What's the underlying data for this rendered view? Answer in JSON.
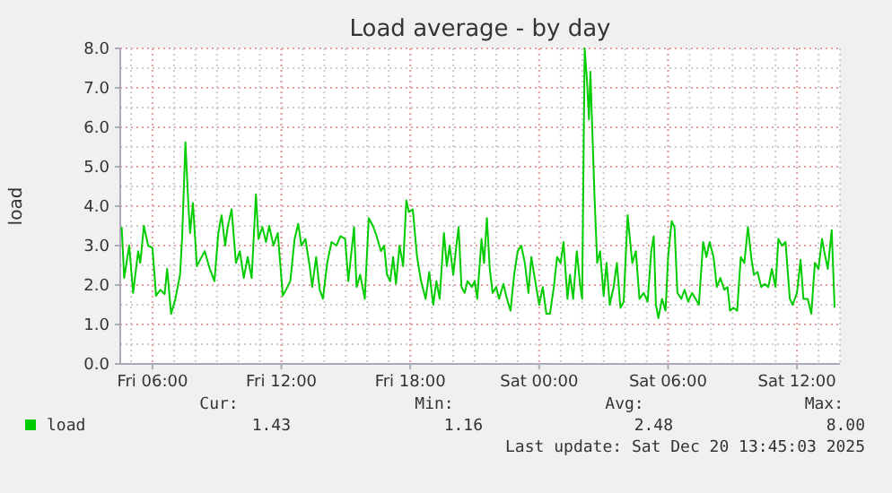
{
  "chart_data": {
    "type": "line",
    "title": "Load average - by day",
    "ylabel": "load",
    "xlim": [
      "2025-12-19T04:30",
      "2025-12-20T14:00"
    ],
    "ylim": [
      0,
      8
    ],
    "xticks": [
      {
        "value": "2025-12-19T06:00",
        "label": "Fri 06:00"
      },
      {
        "value": "2025-12-19T12:00",
        "label": "Fri 12:00"
      },
      {
        "value": "2025-12-19T18:00",
        "label": "Fri 18:00"
      },
      {
        "value": "2025-12-20T00:00",
        "label": "Sat 00:00"
      },
      {
        "value": "2025-12-20T06:00",
        "label": "Sat 06:00"
      },
      {
        "value": "2025-12-20T12:00",
        "label": "Sat 12:00"
      }
    ],
    "yticks": [
      {
        "value": 0,
        "label": "0.0"
      },
      {
        "value": 1,
        "label": "1.0"
      },
      {
        "value": 2,
        "label": "2.0"
      },
      {
        "value": 3,
        "label": "3.0"
      },
      {
        "value": 4,
        "label": "4.0"
      },
      {
        "value": 5,
        "label": "5.0"
      },
      {
        "value": 6,
        "label": "6.0"
      },
      {
        "value": 7,
        "label": "7.0"
      },
      {
        "value": 8,
        "label": "8.0"
      }
    ],
    "grid": true,
    "legend": "bottom",
    "annotations": [
      "Cur:",
      "Min:",
      "Avg:",
      "Max:",
      "1.43",
      "1.16",
      "2.48",
      "8.00",
      "Last update: Sat Dec 20 13:45:03 2025"
    ],
    "series": [
      {
        "name": "load",
        "color": "#00cc00",
        "x": [
          "2025-12-19T04:34",
          "2025-12-19T04:41",
          "2025-12-19T04:55",
          "2025-12-19T05:06",
          "2025-12-19T05:20",
          "2025-12-19T05:26",
          "2025-12-19T05:36",
          "2025-12-19T05:48",
          "2025-12-19T06:00",
          "2025-12-19T06:10",
          "2025-12-19T06:22",
          "2025-12-19T06:34",
          "2025-12-19T06:41",
          "2025-12-19T06:52",
          "2025-12-19T07:04",
          "2025-12-19T07:17",
          "2025-12-19T07:23",
          "2025-12-19T07:32",
          "2025-12-19T07:40",
          "2025-12-19T07:45",
          "2025-12-19T07:53",
          "2025-12-19T08:04",
          "2025-12-19T08:13",
          "2025-12-19T08:26",
          "2025-12-19T08:40",
          "2025-12-19T08:53",
          "2025-12-19T09:04",
          "2025-12-19T09:13",
          "2025-12-19T09:23",
          "2025-12-19T09:30",
          "2025-12-19T09:41",
          "2025-12-19T09:53",
          "2025-12-19T10:04",
          "2025-12-19T10:15",
          "2025-12-19T10:26",
          "2025-12-19T10:37",
          "2025-12-19T10:49",
          "2025-12-19T10:56",
          "2025-12-19T11:07",
          "2025-12-19T11:17",
          "2025-12-19T11:26",
          "2025-12-19T11:38",
          "2025-12-19T11:50",
          "2025-12-19T12:04",
          "2025-12-19T12:13",
          "2025-12-19T12:25",
          "2025-12-19T12:37",
          "2025-12-19T12:47",
          "2025-12-19T12:56",
          "2025-12-19T13:07",
          "2025-12-19T13:19",
          "2025-12-19T13:26",
          "2025-12-19T13:37",
          "2025-12-19T13:47",
          "2025-12-19T13:56",
          "2025-12-19T14:08",
          "2025-12-19T14:20",
          "2025-12-19T14:34",
          "2025-12-19T14:45",
          "2025-12-19T14:58",
          "2025-12-19T15:07",
          "2025-12-19T15:23",
          "2025-12-19T15:30",
          "2025-12-19T15:40",
          "2025-12-19T15:53",
          "2025-12-19T16:04",
          "2025-12-19T16:17",
          "2025-12-19T16:26",
          "2025-12-19T16:38",
          "2025-12-19T16:47",
          "2025-12-19T16:55",
          "2025-12-19T17:04",
          "2025-12-19T17:12",
          "2025-12-19T17:20",
          "2025-12-19T17:30",
          "2025-12-19T17:40",
          "2025-12-19T17:49",
          "2025-12-19T17:56",
          "2025-12-19T18:07",
          "2025-12-19T18:19",
          "2025-12-19T18:30",
          "2025-12-19T18:43",
          "2025-12-19T18:53",
          "2025-12-19T19:04",
          "2025-12-19T19:13",
          "2025-12-19T19:22",
          "2025-12-19T19:34",
          "2025-12-19T19:42",
          "2025-12-19T19:50",
          "2025-12-19T20:00",
          "2025-12-19T20:07",
          "2025-12-19T20:15",
          "2025-12-19T20:23",
          "2025-12-19T20:32",
          "2025-12-19T20:40",
          "2025-12-19T20:52",
          "2025-12-19T21:00",
          "2025-12-19T21:07",
          "2025-12-19T21:19",
          "2025-12-19T21:26",
          "2025-12-19T21:34",
          "2025-12-19T21:42",
          "2025-12-19T21:50",
          "2025-12-19T22:00",
          "2025-12-19T22:08",
          "2025-12-19T22:20",
          "2025-12-19T22:30",
          "2025-12-19T22:40",
          "2025-12-19T22:50",
          "2025-12-19T23:00",
          "2025-12-19T23:10",
          "2025-12-19T23:20",
          "2025-12-19T23:30",
          "2025-12-19T23:38",
          "2025-12-19T23:49",
          "2025-12-20T00:00",
          "2025-12-20T00:10",
          "2025-12-20T00:20",
          "2025-12-20T00:30",
          "2025-12-20T00:41",
          "2025-12-20T00:50",
          "2025-12-20T01:00",
          "2025-12-20T01:08",
          "2025-12-20T01:19",
          "2025-12-20T01:26",
          "2025-12-20T01:35",
          "2025-12-20T01:45",
          "2025-12-20T01:55",
          "2025-12-20T02:00",
          "2025-12-20T02:07",
          "2025-12-20T02:13",
          "2025-12-20T02:19",
          "2025-12-20T02:23",
          "2025-12-20T02:34",
          "2025-12-20T02:42",
          "2025-12-20T02:50",
          "2025-12-20T03:00",
          "2025-12-20T03:08",
          "2025-12-20T03:17",
          "2025-12-20T03:28",
          "2025-12-20T03:37",
          "2025-12-20T03:47",
          "2025-12-20T03:56",
          "2025-12-20T04:07",
          "2025-12-20T04:20",
          "2025-12-20T04:30",
          "2025-12-20T04:40",
          "2025-12-20T04:52",
          "2025-12-20T05:03",
          "2025-12-20T05:13",
          "2025-12-20T05:20",
          "2025-12-20T05:26",
          "2025-12-20T05:33",
          "2025-12-20T05:43",
          "2025-12-20T05:53",
          "2025-12-20T06:00",
          "2025-12-20T06:10",
          "2025-12-20T06:18",
          "2025-12-20T06:26",
          "2025-12-20T06:37",
          "2025-12-20T06:46",
          "2025-12-20T06:56",
          "2025-12-20T07:07",
          "2025-12-20T07:17",
          "2025-12-20T07:26",
          "2025-12-20T07:38",
          "2025-12-20T07:47",
          "2025-12-20T07:56",
          "2025-12-20T08:07",
          "2025-12-20T08:16",
          "2025-12-20T08:26",
          "2025-12-20T08:37",
          "2025-12-20T08:46",
          "2025-12-20T08:53",
          "2025-12-20T09:03",
          "2025-12-20T09:13",
          "2025-12-20T09:23",
          "2025-12-20T09:33",
          "2025-12-20T09:43",
          "2025-12-20T09:53",
          "2025-12-20T10:00",
          "2025-12-20T10:10",
          "2025-12-20T10:20",
          "2025-12-20T10:30",
          "2025-12-20T10:40",
          "2025-12-20T10:50",
          "2025-12-20T11:00",
          "2025-12-20T11:08",
          "2025-12-20T11:18",
          "2025-12-20T11:28",
          "2025-12-20T11:40",
          "2025-12-20T11:48",
          "2025-12-20T12:00",
          "2025-12-20T12:10",
          "2025-12-20T12:18",
          "2025-12-20T12:30",
          "2025-12-20T12:40",
          "2025-12-20T12:50",
          "2025-12-20T13:00",
          "2025-12-20T13:10",
          "2025-12-20T13:16",
          "2025-12-20T13:26",
          "2025-12-20T13:37",
          "2025-12-20T13:45"
        ],
        "values": [
          3.47,
          2.18,
          3.0,
          1.8,
          2.86,
          2.56,
          3.5,
          3.0,
          2.94,
          1.73,
          1.88,
          1.77,
          2.41,
          1.27,
          1.65,
          2.26,
          3.24,
          5.62,
          4.08,
          3.32,
          4.08,
          2.48,
          2.64,
          2.86,
          2.41,
          2.1,
          3.32,
          3.77,
          3.0,
          3.47,
          3.92,
          2.56,
          2.86,
          2.18,
          2.71,
          2.18,
          4.3,
          3.17,
          3.47,
          3.09,
          3.5,
          3.0,
          3.32,
          1.73,
          1.88,
          2.1,
          3.17,
          3.55,
          3.0,
          3.17,
          2.48,
          1.95,
          2.71,
          1.88,
          1.65,
          2.56,
          3.09,
          3.0,
          3.24,
          3.17,
          2.1,
          3.47,
          1.95,
          2.26,
          1.65,
          3.7,
          3.47,
          3.24,
          2.86,
          3.0,
          2.26,
          2.1,
          2.71,
          2.03,
          3.0,
          2.48,
          4.15,
          3.85,
          3.92,
          2.71,
          2.1,
          1.65,
          2.33,
          1.5,
          2.1,
          1.65,
          3.32,
          2.48,
          3.0,
          2.26,
          2.86,
          3.47,
          1.95,
          1.8,
          2.1,
          1.95,
          2.1,
          1.65,
          3.17,
          2.56,
          3.7,
          2.41,
          1.8,
          1.95,
          1.65,
          2.03,
          1.65,
          1.35,
          2.26,
          2.86,
          3.0,
          2.56,
          1.8,
          2.71,
          2.1,
          1.5,
          1.95,
          1.27,
          1.27,
          1.95,
          2.71,
          2.56,
          3.09,
          1.65,
          2.26,
          1.65,
          2.86,
          1.95,
          1.65,
          8.0,
          7.26,
          6.2,
          7.41,
          4.38,
          2.56,
          2.86,
          1.73,
          2.56,
          1.5,
          1.95,
          2.56,
          1.42,
          1.58,
          3.77,
          2.56,
          2.86,
          1.65,
          1.8,
          1.58,
          2.86,
          3.24,
          1.5,
          1.16,
          1.65,
          1.35,
          2.71,
          3.62,
          3.47,
          1.8,
          1.65,
          1.88,
          1.58,
          1.8,
          1.65,
          1.5,
          3.09,
          2.71,
          3.09,
          2.71,
          1.95,
          2.18,
          1.88,
          1.95,
          1.35,
          1.42,
          1.35,
          2.71,
          2.56,
          3.47,
          2.64,
          2.26,
          2.33,
          1.95,
          2.03,
          1.95,
          2.41,
          1.95,
          3.17,
          3.0,
          3.09,
          1.65,
          1.5,
          1.8,
          2.64,
          1.65,
          1.65,
          1.27,
          2.56,
          2.41,
          3.17,
          2.86,
          2.41,
          3.39,
          1.43
        ]
      }
    ]
  }
}
